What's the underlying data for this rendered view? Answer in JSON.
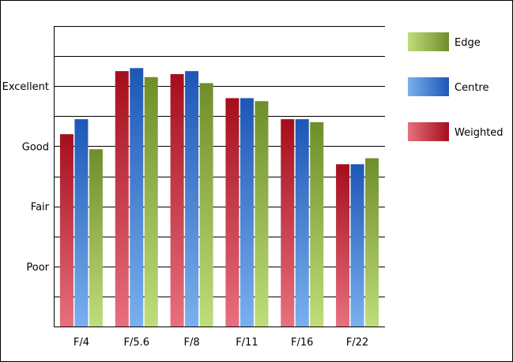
{
  "chart_data": {
    "type": "bar",
    "title": "",
    "xlabel": "",
    "ylabel": "",
    "categories": [
      "F/4",
      "F/5.6",
      "F/8",
      "F/11",
      "F/16",
      "F/22"
    ],
    "y_ticks": [
      {
        "label": "Poor",
        "value": 2
      },
      {
        "label": "Fair",
        "value": 4
      },
      {
        "label": "Good",
        "value": 6
      },
      {
        "label": "Excellent",
        "value": 8
      }
    ],
    "ylim": [
      0,
      10
    ],
    "grid": true,
    "legend_position": "right",
    "series": [
      {
        "name": "Weighted",
        "color_top": "#a50e1c",
        "color_bottom": "#e8707e",
        "values": [
          6.4,
          8.5,
          8.4,
          7.6,
          6.9,
          5.4
        ]
      },
      {
        "name": "Centre",
        "color_top": "#1d57b6",
        "color_bottom": "#7ab0ee",
        "values": [
          6.9,
          8.6,
          8.5,
          7.6,
          6.9,
          5.4
        ]
      },
      {
        "name": "Edge",
        "color_top": "#6f8e2a",
        "color_bottom": "#bfdd7a",
        "values": [
          5.9,
          8.3,
          8.1,
          7.5,
          6.8,
          5.6
        ]
      }
    ],
    "legend": [
      {
        "name": "Edge"
      },
      {
        "name": "Centre"
      },
      {
        "name": "Weighted"
      }
    ]
  }
}
